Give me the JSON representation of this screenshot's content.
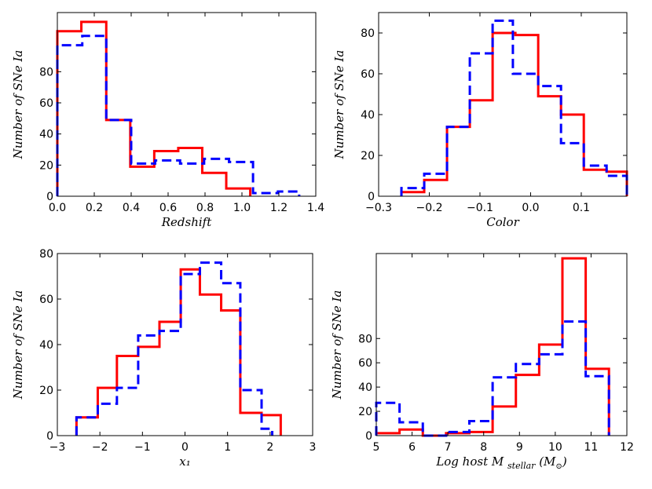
{
  "colors": {
    "red_series": "#ff0000",
    "blue_series": "#0000ff",
    "axes": "#000000"
  },
  "chart_data": [
    {
      "type": "histogram",
      "xlabel": "Redshift",
      "ylabel": "Number of SNe Ia",
      "xlim": [
        0.0,
        1.4
      ],
      "ylim": [
        0,
        118
      ],
      "xticks": [
        0.0,
        0.2,
        0.4,
        0.6,
        0.8,
        1.0,
        1.2,
        1.4
      ],
      "xtick_labels": [
        "0.0",
        "0.2",
        "0.4",
        "0.6",
        "0.8",
        "1.0",
        "1.2",
        "1.4"
      ],
      "yticks": [
        0,
        20,
        40,
        60,
        80
      ],
      "ytick_labels": [
        "0",
        "20",
        "40",
        "60",
        "80"
      ],
      "series": [
        {
          "name": "red",
          "color": "#ff0000",
          "style": "solid",
          "edges": [
            0.0,
            0.13,
            0.265,
            0.395,
            0.525,
            0.655,
            0.785,
            0.915,
            1.045
          ],
          "counts": [
            106,
            112,
            49,
            19,
            29,
            31,
            15,
            5
          ]
        },
        {
          "name": "blue",
          "color": "#0000ff",
          "style": "dashed",
          "edges": [
            0.0,
            0.135,
            0.265,
            0.4,
            0.53,
            0.665,
            0.795,
            0.93,
            1.06,
            1.195,
            1.31
          ],
          "counts": [
            97,
            103,
            49,
            21,
            23,
            21,
            24,
            22,
            2,
            3
          ]
        }
      ]
    },
    {
      "type": "histogram",
      "xlabel": "Color",
      "ylabel": "Number of SNe Ia",
      "xlim": [
        -0.3,
        0.19
      ],
      "ylim": [
        0,
        90
      ],
      "xticks": [
        -0.3,
        -0.2,
        -0.1,
        0.0,
        0.1
      ],
      "xtick_labels": [
        "−0.3",
        "−0.2",
        "−0.1",
        "0.0",
        "0.1"
      ],
      "yticks": [
        0,
        20,
        40,
        60,
        80
      ],
      "ytick_labels": [
        "0",
        "20",
        "40",
        "60",
        "80"
      ],
      "series": [
        {
          "name": "red",
          "color": "#ff0000",
          "style": "solid",
          "edges": [
            -0.255,
            -0.21,
            -0.165,
            -0.12,
            -0.075,
            -0.03,
            0.015,
            0.06,
            0.105,
            0.15,
            0.19
          ],
          "counts": [
            2,
            8,
            34,
            47,
            80,
            79,
            49,
            40,
            13,
            12
          ]
        },
        {
          "name": "blue",
          "color": "#0000ff",
          "style": "dashed",
          "edges": [
            -0.255,
            -0.21,
            -0.165,
            -0.12,
            -0.075,
            -0.035,
            0.015,
            0.06,
            0.105,
            0.15,
            0.19
          ],
          "counts": [
            4,
            11,
            34,
            70,
            86,
            60,
            54,
            26,
            15,
            10
          ]
        }
      ]
    },
    {
      "type": "histogram",
      "xlabel": "x₁",
      "ylabel": "Number of SNe Ia",
      "xlim": [
        -3,
        3
      ],
      "ylim": [
        0,
        80
      ],
      "xticks": [
        -3,
        -2,
        -1,
        0,
        1,
        2,
        3
      ],
      "xtick_labels": [
        "−3",
        "−2",
        "−1",
        "0",
        "1",
        "2",
        "3"
      ],
      "yticks": [
        0,
        20,
        40,
        60,
        80
      ],
      "ytick_labels": [
        "0",
        "20",
        "40",
        "60",
        "80"
      ],
      "series": [
        {
          "name": "red",
          "color": "#ff0000",
          "style": "solid",
          "edges": [
            -2.55,
            -2.05,
            -1.6,
            -1.1,
            -0.6,
            -0.1,
            0.35,
            0.85,
            1.3,
            1.8,
            2.25
          ],
          "counts": [
            8,
            21,
            35,
            39,
            50,
            73,
            62,
            55,
            10,
            9
          ]
        },
        {
          "name": "blue",
          "color": "#0000ff",
          "style": "dashed",
          "edges": [
            -2.55,
            -2.05,
            -1.6,
            -1.1,
            -0.6,
            -0.1,
            0.35,
            0.85,
            1.3,
            1.8,
            2.05
          ],
          "counts": [
            8,
            14,
            21,
            44,
            46,
            71,
            76,
            67,
            20,
            3
          ]
        }
      ]
    },
    {
      "type": "histogram",
      "xlabel": "Log host M",
      "xlabel_sub": "stellar",
      "xlabel_unit": "(M",
      "xlabel_unit_sub": "⊙",
      "xlabel_close": ")",
      "ylabel": "Number of SNe Ia",
      "xlim": [
        5,
        12
      ],
      "ylim": [
        0,
        150
      ],
      "xticks": [
        5,
        6,
        7,
        8,
        9,
        10,
        11,
        12
      ],
      "xtick_labels": [
        "5",
        "6",
        "7",
        "8",
        "9",
        "10",
        "11",
        "12"
      ],
      "yticks": [
        0,
        20,
        40,
        60,
        80
      ],
      "ytick_labels": [
        "0",
        "20",
        "40",
        "60",
        "80"
      ],
      "series": [
        {
          "name": "red",
          "color": "#ff0000",
          "style": "solid",
          "edges": [
            5.0,
            5.65,
            6.3,
            6.95,
            7.6,
            8.25,
            8.9,
            9.55,
            10.2,
            10.85,
            11.5
          ],
          "counts": [
            2,
            5,
            0,
            2,
            3,
            24,
            50,
            75,
            146,
            55
          ]
        },
        {
          "name": "blue",
          "color": "#0000ff",
          "style": "dashed",
          "edges": [
            5.0,
            5.65,
            6.3,
            6.95,
            7.6,
            8.25,
            8.9,
            9.55,
            10.2,
            10.85,
            11.5
          ],
          "counts": [
            27,
            11,
            0,
            3,
            12,
            48,
            59,
            67,
            94,
            49
          ]
        }
      ]
    }
  ]
}
